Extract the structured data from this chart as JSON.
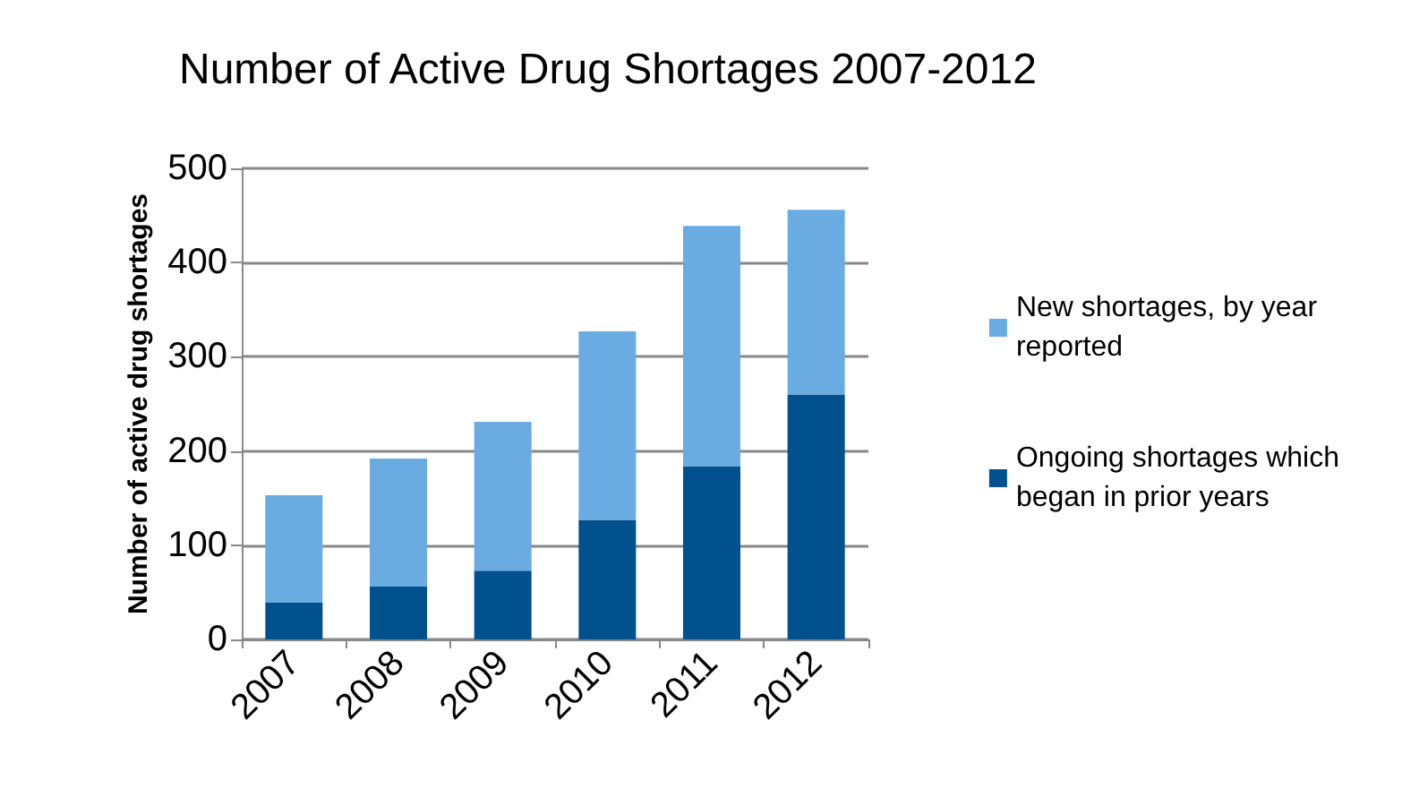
{
  "chart_data": {
    "type": "bar",
    "title": "Number of Active Drug Shortages 2007-2012",
    "ylabel": "Number of active drug shortages",
    "categories": [
      "2007",
      "2008",
      "2009",
      "2010",
      "2011",
      "2012"
    ],
    "series": [
      {
        "name": "Ongoing shortages which began in prior years",
        "color": "#02518f",
        "values": [
          39,
          56,
          73,
          127,
          184,
          260
        ]
      },
      {
        "name": "New shortages, by year reported",
        "color": "#6aace2",
        "values": [
          114,
          136,
          158,
          200,
          255,
          196
        ]
      }
    ],
    "stacked": true,
    "ylim": [
      0,
      500
    ],
    "yticks": [
      0,
      100,
      200,
      300,
      400,
      500
    ],
    "grid": "y",
    "legend": "right"
  }
}
